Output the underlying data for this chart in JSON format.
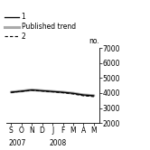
{
  "title": "",
  "ylabel": "no.",
  "ylim": [
    2000,
    7000
  ],
  "yticks": [
    2000,
    3000,
    4000,
    5000,
    6000,
    7000
  ],
  "x_labels": [
    "S",
    "O",
    "N",
    "D",
    "J",
    "F",
    "M",
    "A",
    "M"
  ],
  "year_label_2007": "2007",
  "year_label_2008": "2008",
  "line1": [
    4050,
    4120,
    4200,
    4150,
    4100,
    4050,
    3980,
    3870,
    3820
  ],
  "line_published": [
    4060,
    4130,
    4210,
    4155,
    4105,
    4055,
    3985,
    3875,
    3825
  ],
  "line_dashed": [
    4040,
    4110,
    4180,
    4130,
    4080,
    4020,
    3940,
    3820,
    3760
  ],
  "line1_color": "#000000",
  "line_published_color": "#aaaaaa",
  "line2_color": "#000000",
  "legend_labels": [
    "1",
    "Published trend",
    "2"
  ],
  "bg_color": "#ffffff",
  "tick_fontsize": 5.5,
  "label_fontsize": 5.5
}
